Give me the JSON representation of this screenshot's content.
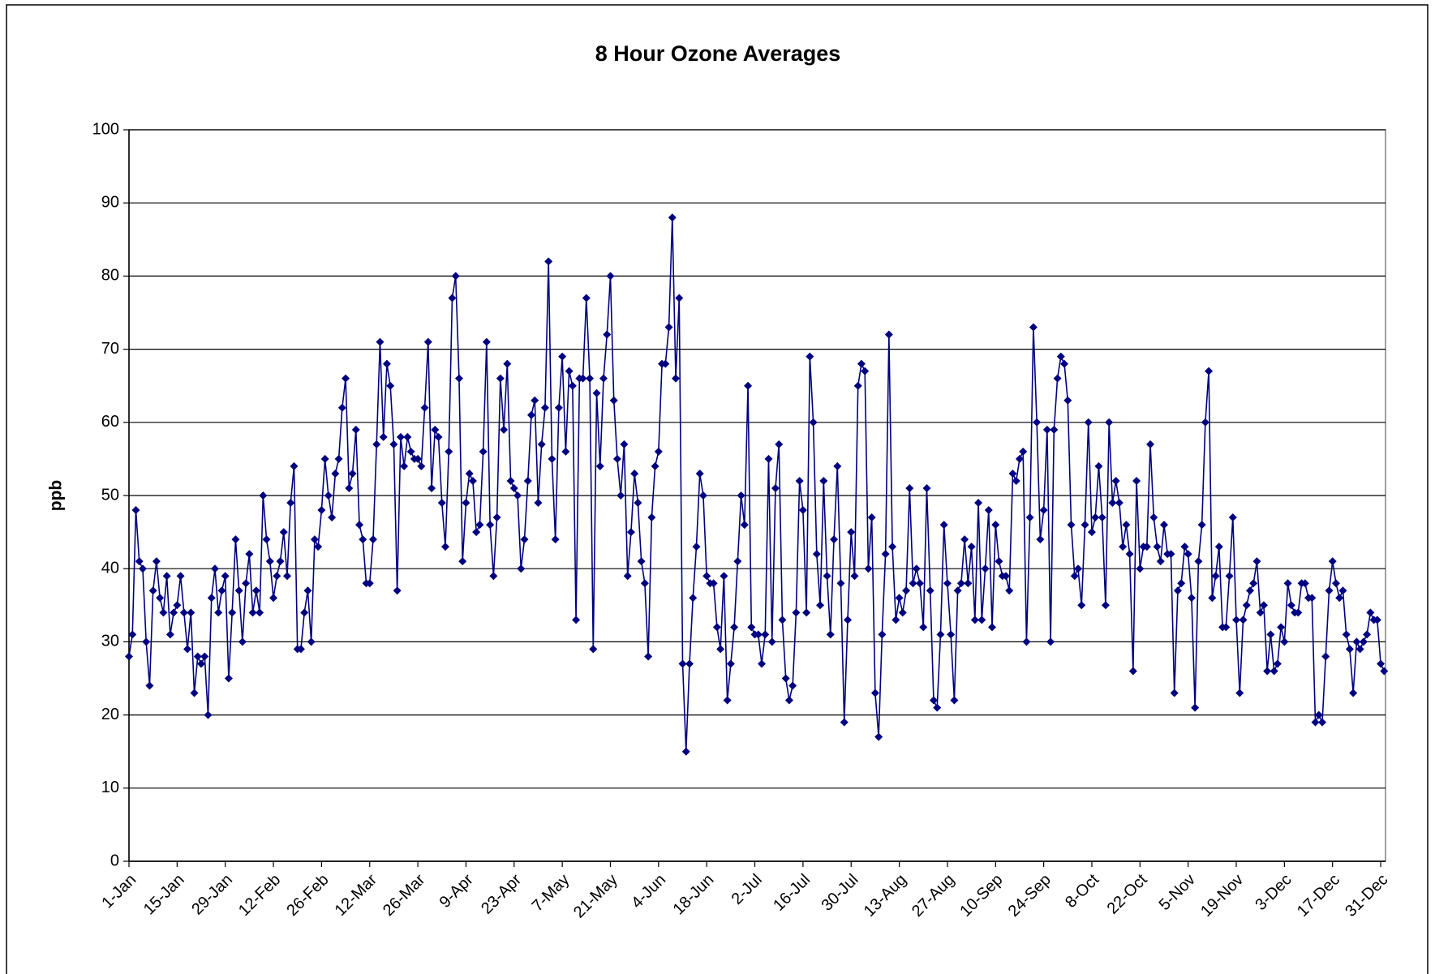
{
  "chart_data": {
    "type": "line",
    "title": "8 Hour Ozone Averages",
    "y_label": "ppb",
    "categories": [
      "1-Jan",
      null,
      null,
      null,
      null,
      null,
      null,
      null,
      null,
      null,
      null,
      null,
      null,
      null,
      "15-Jan",
      null,
      null,
      null,
      null,
      null,
      null,
      null,
      null,
      null,
      null,
      null,
      null,
      null,
      "29-Jan",
      null,
      null,
      null,
      null,
      null,
      null,
      null,
      null,
      null,
      null,
      null,
      null,
      null,
      "12-Feb",
      null,
      null,
      null,
      null,
      null,
      null,
      null,
      null,
      null,
      null,
      null,
      null,
      null,
      "26-Feb",
      null,
      null,
      null,
      null,
      null,
      null,
      null,
      null,
      null,
      null,
      null,
      null,
      null,
      "12-Mar",
      null,
      null,
      null,
      null,
      null,
      null,
      null,
      null,
      null,
      null,
      null,
      null,
      null,
      "26-Mar",
      null,
      null,
      null,
      null,
      null,
      null,
      null,
      null,
      null,
      null,
      null,
      null,
      null,
      "9-Apr",
      null,
      null,
      null,
      null,
      null,
      null,
      null,
      null,
      null,
      null,
      null,
      null,
      null,
      "23-Apr",
      null,
      null,
      null,
      null,
      null,
      null,
      null,
      null,
      null,
      null,
      null,
      null,
      null,
      "7-May",
      null,
      null,
      null,
      null,
      null,
      null,
      null,
      null,
      null,
      null,
      null,
      null,
      null,
      "21-May",
      null,
      null,
      null,
      null,
      null,
      null,
      null,
      null,
      null,
      null,
      null,
      null,
      null,
      "4-Jun",
      null,
      null,
      null,
      null,
      null,
      null,
      null,
      null,
      null,
      null,
      null,
      null,
      null,
      "18-Jun",
      null,
      null,
      null,
      null,
      null,
      null,
      null,
      null,
      null,
      null,
      null,
      null,
      null,
      "2-Jul",
      null,
      null,
      null,
      null,
      null,
      null,
      null,
      null,
      null,
      null,
      null,
      null,
      null,
      "16-Jul",
      null,
      null,
      null,
      null,
      null,
      null,
      null,
      null,
      null,
      null,
      null,
      null,
      null,
      "30-Jul",
      null,
      null,
      null,
      null,
      null,
      null,
      null,
      null,
      null,
      null,
      null,
      null,
      null,
      "13-Aug",
      null,
      null,
      null,
      null,
      null,
      null,
      null,
      null,
      null,
      null,
      null,
      null,
      null,
      "27-Aug",
      null,
      null,
      null,
      null,
      null,
      null,
      null,
      null,
      null,
      null,
      null,
      null,
      null,
      "10-Sep",
      null,
      null,
      null,
      null,
      null,
      null,
      null,
      null,
      null,
      null,
      null,
      null,
      null,
      "24-Sep",
      null,
      null,
      null,
      null,
      null,
      null,
      null,
      null,
      null,
      null,
      null,
      null,
      null,
      "8-Oct",
      null,
      null,
      null,
      null,
      null,
      null,
      null,
      null,
      null,
      null,
      null,
      null,
      null,
      "22-Oct",
      null,
      null,
      null,
      null,
      null,
      null,
      null,
      null,
      null,
      null,
      null,
      null,
      null,
      "5-Nov",
      null,
      null,
      null,
      null,
      null,
      null,
      null,
      null,
      null,
      null,
      null,
      null,
      null,
      "19-Nov",
      null,
      null,
      null,
      null,
      null,
      null,
      null,
      null,
      null,
      null,
      null,
      null,
      null,
      "3-Dec",
      null,
      null,
      null,
      null,
      null,
      null,
      null,
      null,
      null,
      null,
      null,
      null,
      null,
      "17-Dec",
      null,
      null,
      null,
      null,
      null,
      null,
      null,
      null,
      null,
      null,
      null,
      null,
      null,
      "31-Dec",
      null
    ],
    "values": [
      28,
      31,
      48,
      41,
      40,
      30,
      24,
      37,
      41,
      36,
      34,
      39,
      31,
      34,
      35,
      39,
      34,
      29,
      34,
      23,
      28,
      27,
      28,
      20,
      36,
      40,
      34,
      37,
      39,
      25,
      34,
      44,
      37,
      30,
      38,
      42,
      34,
      37,
      34,
      50,
      44,
      41,
      36,
      39,
      41,
      45,
      39,
      49,
      54,
      29,
      29,
      34,
      37,
      30,
      44,
      43,
      48,
      55,
      50,
      47,
      53,
      55,
      62,
      66,
      51,
      53,
      59,
      46,
      44,
      38,
      38,
      44,
      57,
      71,
      58,
      68,
      65,
      57,
      37,
      58,
      54,
      58,
      56,
      55,
      55,
      54,
      62,
      71,
      51,
      59,
      58,
      49,
      43,
      56,
      77,
      80,
      66,
      41,
      49,
      53,
      52,
      45,
      46,
      56,
      71,
      46,
      39,
      47,
      66,
      59,
      68,
      52,
      51,
      50,
      40,
      44,
      52,
      61,
      63,
      49,
      57,
      62,
      82,
      55,
      44,
      62,
      69,
      56,
      67,
      65,
      33,
      66,
      66,
      77,
      66,
      29,
      64,
      54,
      66,
      72,
      80,
      63,
      55,
      50,
      57,
      39,
      45,
      53,
      49,
      41,
      38,
      28,
      47,
      54,
      56,
      68,
      68,
      73,
      88,
      66,
      77,
      27,
      15,
      27,
      36,
      43,
      53,
      50,
      39,
      38,
      38,
      32,
      29,
      39,
      22,
      27,
      32,
      41,
      50,
      46,
      65,
      32,
      31,
      31,
      27,
      31,
      55,
      30,
      51,
      57,
      33,
      25,
      22,
      24,
      34,
      52,
      48,
      34,
      69,
      60,
      42,
      35,
      52,
      39,
      31,
      44,
      54,
      38,
      19,
      33,
      45,
      39,
      65,
      68,
      67,
      40,
      47,
      23,
      17,
      31,
      42,
      72,
      43,
      33,
      36,
      34,
      37,
      51,
      38,
      40,
      38,
      32,
      51,
      37,
      22,
      21,
      31,
      46,
      38,
      31,
      22,
      37,
      38,
      44,
      38,
      43,
      33,
      49,
      33,
      40,
      48,
      32,
      46,
      41,
      39,
      39,
      37,
      53,
      52,
      55,
      56,
      30,
      47,
      73,
      60,
      44,
      48,
      59,
      30,
      59,
      66,
      69,
      68,
      63,
      46,
      39,
      40,
      35,
      46,
      60,
      45,
      47,
      54,
      47,
      35,
      60,
      49,
      52,
      49,
      43,
      46,
      42,
      26,
      52,
      40,
      43,
      43,
      57,
      47,
      43,
      41,
      46,
      42,
      42,
      23,
      37,
      38,
      43,
      42,
      36,
      21,
      41,
      46,
      60,
      67,
      36,
      39,
      43,
      32,
      32,
      39,
      47,
      33,
      23,
      33,
      35,
      37,
      38,
      41,
      34,
      35,
      26,
      31,
      26,
      27,
      32,
      30,
      38,
      35,
      34,
      34,
      38,
      38,
      36,
      36,
      19,
      20,
      19,
      28,
      37,
      41,
      38,
      36,
      37,
      31,
      29,
      23,
      30,
      29,
      30,
      31,
      34,
      33,
      33,
      27,
      26
    ],
    "color": "#000080",
    "marker": "diamond",
    "ylim": [
      0,
      100
    ],
    "yticks": [
      0,
      10,
      20,
      30,
      40,
      50,
      60,
      70,
      80,
      90,
      100
    ],
    "grid": true
  }
}
